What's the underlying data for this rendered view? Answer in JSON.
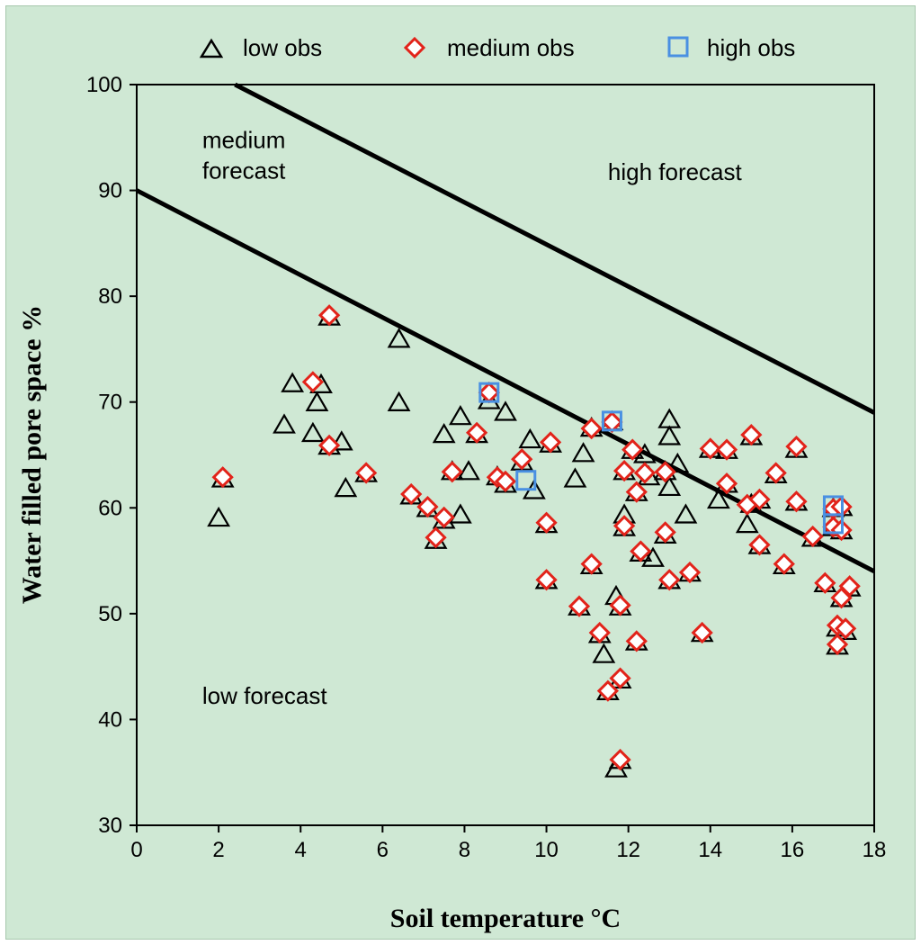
{
  "chart_data": {
    "type": "scatter",
    "xlabel": "Soil temperature °C",
    "ylabel": "Water filled pore space %",
    "xlim": [
      0,
      18
    ],
    "ylim": [
      30,
      100
    ],
    "xticks": [
      "0",
      "2",
      "4",
      "6",
      "8",
      "10",
      "12",
      "14",
      "16",
      "18"
    ],
    "yticks": [
      "30",
      "40",
      "50",
      "60",
      "70",
      "80",
      "90",
      "100"
    ],
    "legend_position": "top",
    "annotations": [
      {
        "lines": [
          "medium",
          "forecast"
        ],
        "x": 1.6,
        "y": 94
      },
      {
        "lines": [
          "high forecast"
        ],
        "x": 11.5,
        "y": 91
      },
      {
        "lines": [
          "low forecast"
        ],
        "x": 1.6,
        "y": 41.5
      }
    ],
    "lines": [
      {
        "points": [
          [
            0,
            90
          ],
          [
            18,
            54
          ]
        ],
        "color": "#000000"
      },
      {
        "points": [
          [
            2.4,
            100
          ],
          [
            18,
            69
          ]
        ],
        "color": "#000000"
      }
    ],
    "series": [
      {
        "name": "low obs",
        "marker": "triangle",
        "color": "#000000",
        "points": [
          [
            2.0,
            59.0
          ],
          [
            2.1,
            62.7
          ],
          [
            3.6,
            67.8
          ],
          [
            3.8,
            71.7
          ],
          [
            4.3,
            67.0
          ],
          [
            4.4,
            69.9
          ],
          [
            4.5,
            71.6
          ],
          [
            4.7,
            78.0
          ],
          [
            4.7,
            65.8
          ],
          [
            5.0,
            66.2
          ],
          [
            5.1,
            61.8
          ],
          [
            5.6,
            63.2
          ],
          [
            6.4,
            75.9
          ],
          [
            6.4,
            69.9
          ],
          [
            6.7,
            61.1
          ],
          [
            7.1,
            59.9
          ],
          [
            7.3,
            56.9
          ],
          [
            7.5,
            66.9
          ],
          [
            7.5,
            58.8
          ],
          [
            7.7,
            63.4
          ],
          [
            7.9,
            68.6
          ],
          [
            7.9,
            59.3
          ],
          [
            8.1,
            63.4
          ],
          [
            8.3,
            66.9
          ],
          [
            8.6,
            70.1
          ],
          [
            8.8,
            62.9
          ],
          [
            9.0,
            69.0
          ],
          [
            9.0,
            62.2
          ],
          [
            9.4,
            64.3
          ],
          [
            9.6,
            66.4
          ],
          [
            9.7,
            61.6
          ],
          [
            10.0,
            58.4
          ],
          [
            10.0,
            53.1
          ],
          [
            10.1,
            66.0
          ],
          [
            10.7,
            62.7
          ],
          [
            10.8,
            50.6
          ],
          [
            10.9,
            65.1
          ],
          [
            11.1,
            67.5
          ],
          [
            11.1,
            54.5
          ],
          [
            11.3,
            48.0
          ],
          [
            11.4,
            46.1
          ],
          [
            11.5,
            42.6
          ],
          [
            11.6,
            68.1
          ],
          [
            11.7,
            51.6
          ],
          [
            11.7,
            35.3
          ],
          [
            11.8,
            50.6
          ],
          [
            11.8,
            43.7
          ],
          [
            11.8,
            36.1
          ],
          [
            11.9,
            59.3
          ],
          [
            11.9,
            58.1
          ],
          [
            11.9,
            63.4
          ],
          [
            12.1,
            65.4
          ],
          [
            12.2,
            61.4
          ],
          [
            12.2,
            47.3
          ],
          [
            12.3,
            55.7
          ],
          [
            12.4,
            65.0
          ],
          [
            12.5,
            62.9
          ],
          [
            12.6,
            55.2
          ],
          [
            12.9,
            57.4
          ],
          [
            12.9,
            63.4
          ],
          [
            13.0,
            68.3
          ],
          [
            13.0,
            66.7
          ],
          [
            13.0,
            61.9
          ],
          [
            13.0,
            53.1
          ],
          [
            13.2,
            64.1
          ],
          [
            13.4,
            59.3
          ],
          [
            13.5,
            53.8
          ],
          [
            13.8,
            48.1
          ],
          [
            14.0,
            65.5
          ],
          [
            14.2,
            60.7
          ],
          [
            14.4,
            65.4
          ],
          [
            14.4,
            62.2
          ],
          [
            14.9,
            58.4
          ],
          [
            15.0,
            66.7
          ],
          [
            15.0,
            60.3
          ],
          [
            15.2,
            60.7
          ],
          [
            15.2,
            56.4
          ],
          [
            15.6,
            63.1
          ],
          [
            15.8,
            54.5
          ],
          [
            16.1,
            65.5
          ],
          [
            16.1,
            60.5
          ],
          [
            16.5,
            57.1
          ],
          [
            16.8,
            52.8
          ],
          [
            17.0,
            59.9
          ],
          [
            17.0,
            58.1
          ],
          [
            17.1,
            48.6
          ],
          [
            17.1,
            46.9
          ],
          [
            17.2,
            60.0
          ],
          [
            17.2,
            57.8
          ],
          [
            17.2,
            51.4
          ],
          [
            17.3,
            48.3
          ],
          [
            17.4,
            52.4
          ]
        ]
      },
      {
        "name": "medium obs",
        "marker": "diamond",
        "color": "#e2231a",
        "points": [
          [
            2.1,
            62.9
          ],
          [
            4.3,
            71.9
          ],
          [
            4.7,
            78.2
          ],
          [
            4.7,
            65.9
          ],
          [
            5.6,
            63.3
          ],
          [
            6.7,
            61.3
          ],
          [
            7.1,
            60.1
          ],
          [
            7.3,
            57.2
          ],
          [
            7.5,
            59.1
          ],
          [
            7.7,
            63.4
          ],
          [
            8.3,
            67.1
          ],
          [
            8.6,
            70.9
          ],
          [
            8.8,
            62.9
          ],
          [
            9.0,
            62.5
          ],
          [
            9.4,
            64.6
          ],
          [
            10.0,
            58.6
          ],
          [
            10.0,
            53.2
          ],
          [
            10.1,
            66.2
          ],
          [
            10.8,
            50.7
          ],
          [
            11.1,
            67.5
          ],
          [
            11.1,
            54.7
          ],
          [
            11.3,
            48.2
          ],
          [
            11.5,
            42.7
          ],
          [
            11.6,
            68.1
          ],
          [
            11.8,
            50.8
          ],
          [
            11.8,
            43.9
          ],
          [
            11.8,
            36.2
          ],
          [
            11.9,
            63.5
          ],
          [
            11.9,
            58.3
          ],
          [
            12.1,
            65.5
          ],
          [
            12.2,
            61.5
          ],
          [
            12.2,
            47.4
          ],
          [
            12.3,
            55.9
          ],
          [
            12.4,
            63.3
          ],
          [
            12.9,
            63.4
          ],
          [
            12.9,
            57.7
          ],
          [
            13.0,
            53.2
          ],
          [
            13.5,
            53.9
          ],
          [
            13.8,
            48.2
          ],
          [
            14.0,
            65.6
          ],
          [
            14.4,
            65.5
          ],
          [
            14.4,
            62.3
          ],
          [
            14.9,
            60.3
          ],
          [
            15.0,
            66.9
          ],
          [
            15.2,
            60.8
          ],
          [
            15.2,
            56.5
          ],
          [
            15.6,
            63.3
          ],
          [
            15.8,
            54.7
          ],
          [
            16.1,
            65.8
          ],
          [
            16.1,
            60.6
          ],
          [
            16.5,
            57.3
          ],
          [
            16.8,
            52.9
          ],
          [
            17.0,
            59.9
          ],
          [
            17.0,
            58.2
          ],
          [
            17.1,
            48.9
          ],
          [
            17.1,
            47.1
          ],
          [
            17.2,
            60.1
          ],
          [
            17.2,
            57.9
          ],
          [
            17.2,
            51.5
          ],
          [
            17.3,
            48.6
          ],
          [
            17.4,
            52.6
          ]
        ]
      },
      {
        "name": "high obs",
        "marker": "square",
        "color": "#4a90e2",
        "points": [
          [
            8.6,
            70.9
          ],
          [
            9.5,
            62.6
          ],
          [
            11.6,
            68.2
          ],
          [
            17.0,
            60.2
          ],
          [
            17.0,
            58.5
          ]
        ]
      }
    ]
  }
}
